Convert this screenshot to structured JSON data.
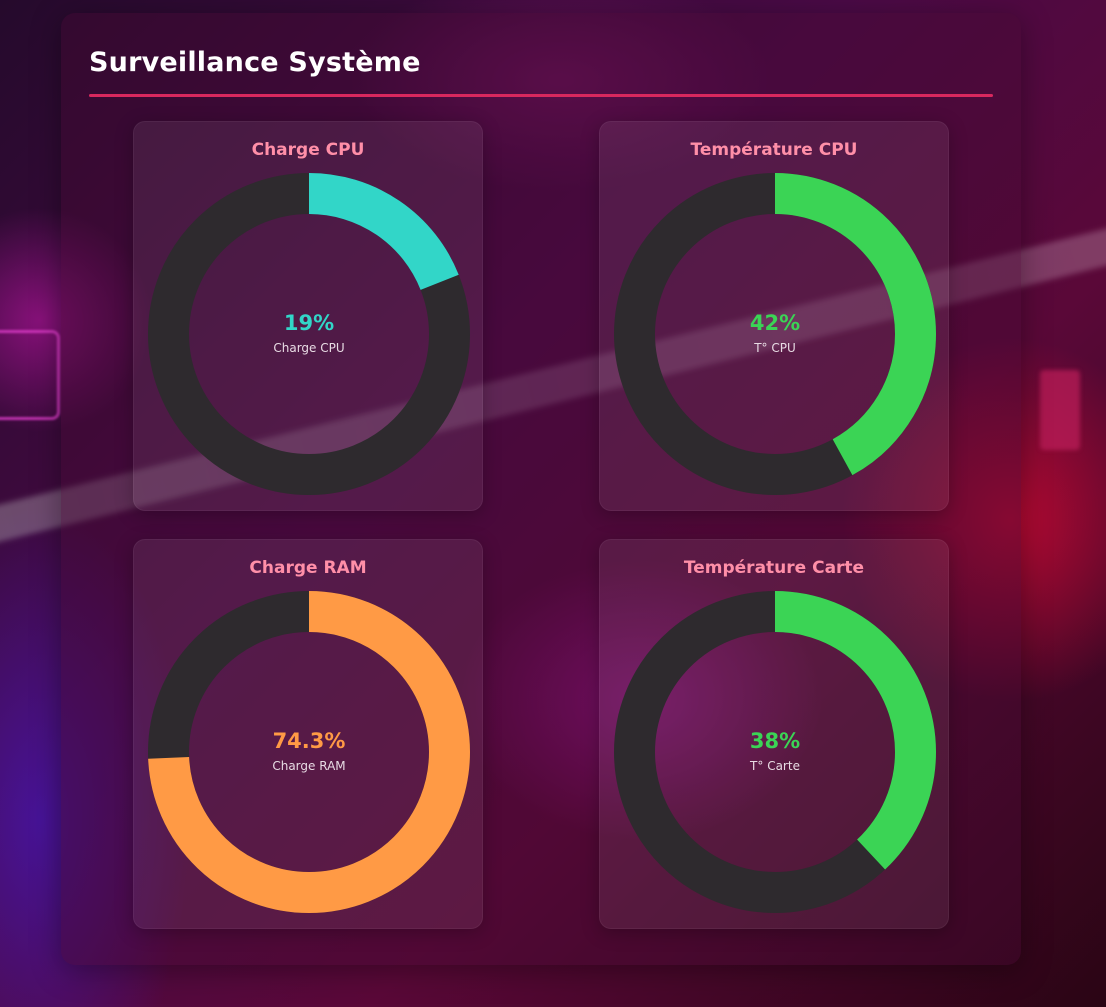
{
  "page": {
    "title": "Surveillance Système"
  },
  "colors": {
    "accent": "#d8285e",
    "card_title": "#ff8fa8",
    "track": "#2e2a2e"
  },
  "gauges": [
    {
      "title": "Charge CPU",
      "value_text": "19%",
      "label": "Charge CPU",
      "fraction": 0.19,
      "color": "#32d6c8"
    },
    {
      "title": "Température CPU",
      "value_text": "42%",
      "label": "T° CPU",
      "fraction": 0.42,
      "color": "#3bd455"
    },
    {
      "title": "Charge RAM",
      "value_text": "74.3%",
      "label": "Charge RAM",
      "fraction": 0.743,
      "color": "#ff9a45"
    },
    {
      "title": "Température Carte",
      "value_text": "38%",
      "label": "T° Carte",
      "fraction": 0.38,
      "color": "#3bd455"
    }
  ]
}
